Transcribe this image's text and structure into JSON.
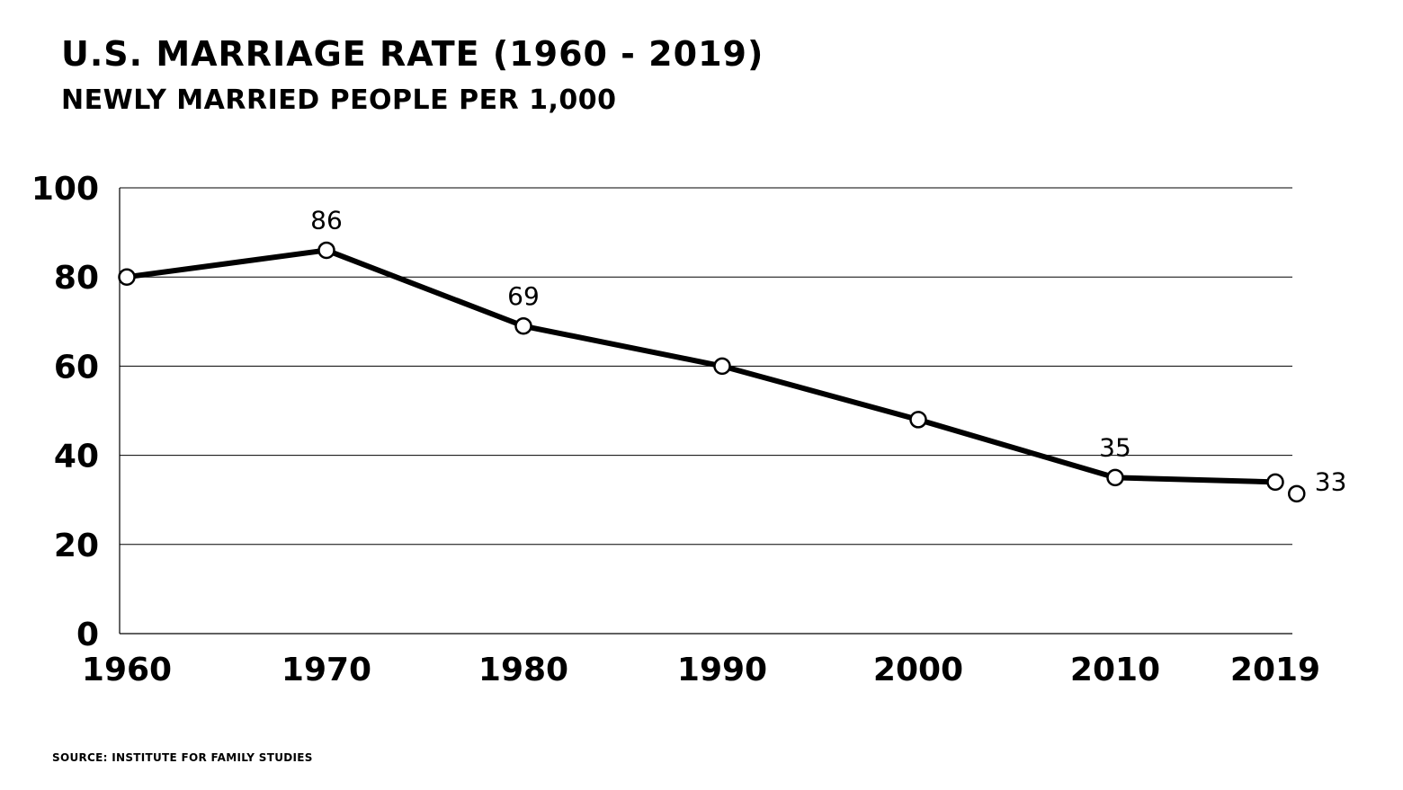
{
  "title": "U.S. MARRIAGE RATE (1960 - 2019)",
  "subtitle": "NEWLY MARRIED PEOPLE PER 1,000",
  "source": "SOURCE: INSTITUTE FOR FAMILY STUDIES",
  "chart_data": {
    "type": "line",
    "title": "U.S. MARRIAGE RATE (1960 - 2019)",
    "subtitle": "NEWLY MARRIED PEOPLE PER 1,000",
    "xlabel": "",
    "ylabel": "",
    "x": [
      1960,
      1970,
      1980,
      1990,
      2000,
      2010,
      2019
    ],
    "x_tick_labels": [
      "1960",
      "1970",
      "1980",
      "1990",
      "2000",
      "2010",
      "2019"
    ],
    "y_ticks": [
      0,
      20,
      40,
      60,
      80,
      100
    ],
    "ylim": [
      0,
      100
    ],
    "series": [
      {
        "values": [
          80,
          86,
          69,
          60,
          48,
          35,
          34
        ]
      }
    ],
    "extra_point": {
      "x": 2020,
      "y": 33
    },
    "data_labels": [
      {
        "x": 1970,
        "text": "86"
      },
      {
        "x": 1980,
        "text": "69"
      },
      {
        "x": 2010,
        "text": "35"
      },
      {
        "x": 2020,
        "text": "33"
      }
    ],
    "grid": true,
    "line_color": "#000000",
    "marker_fill": "#ffffff"
  }
}
